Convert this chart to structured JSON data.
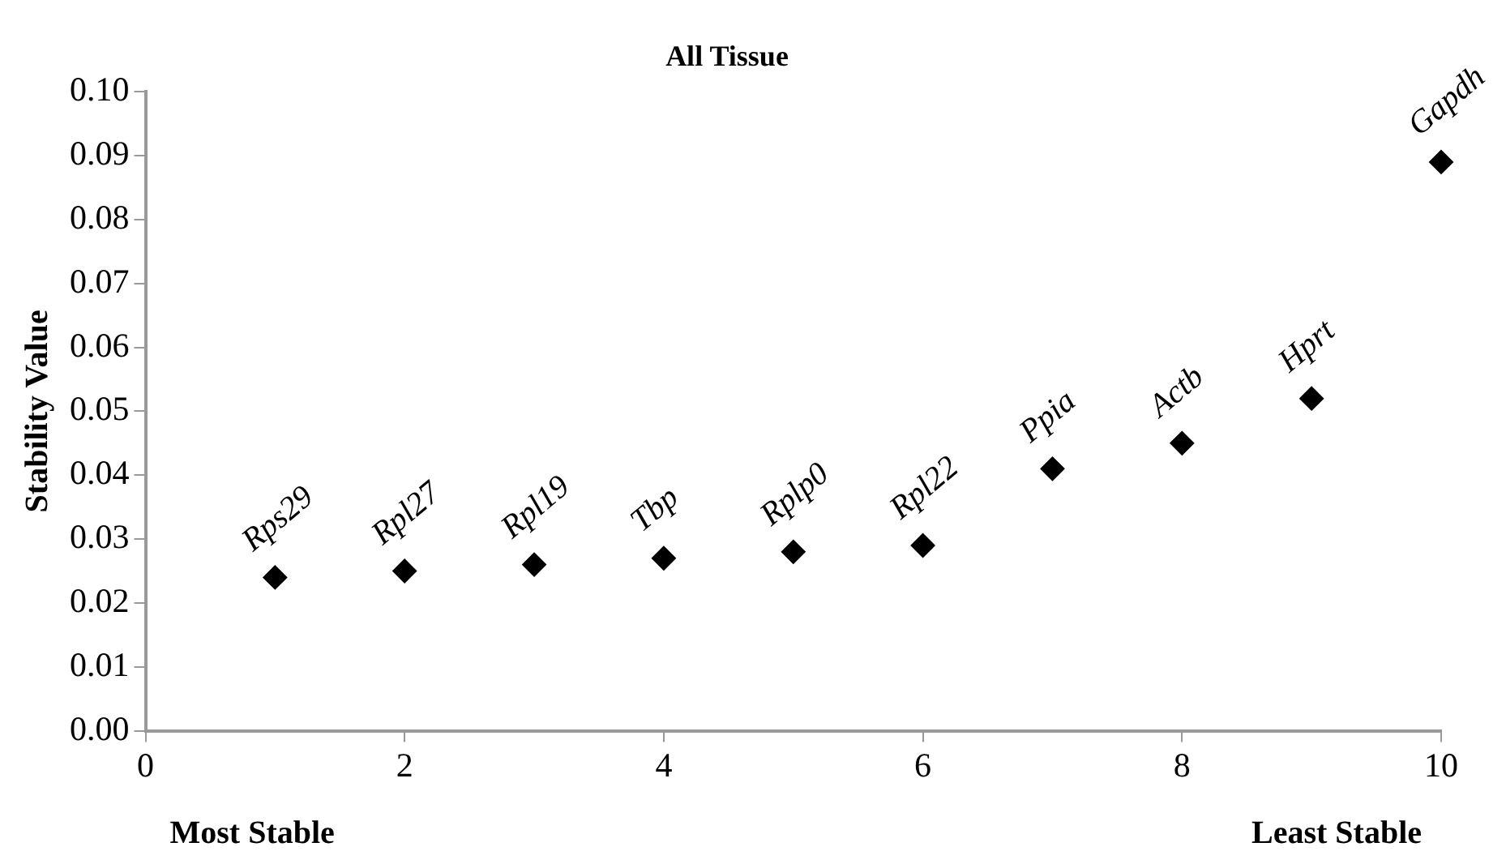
{
  "chart_data": {
    "type": "scatter",
    "title": "All Tissue",
    "ylabel": "Stability Value",
    "x": [
      1,
      2,
      3,
      4,
      5,
      6,
      7,
      8,
      9,
      10
    ],
    "values": [
      0.024,
      0.025,
      0.026,
      0.027,
      0.028,
      0.029,
      0.041,
      0.045,
      0.052,
      0.089
    ],
    "color": "#000000",
    "marker": "diamond",
    "grid": false,
    "legend": false,
    "xlim": [
      0,
      10
    ],
    "xticks": [
      0,
      2,
      4,
      6,
      8,
      10
    ],
    "ylim": [
      0,
      0.1
    ],
    "yticks": [
      {
        "value": 0,
        "label": "0.00"
      },
      {
        "value": 0.01,
        "label": "0.01"
      },
      {
        "value": 0.02,
        "label": "0.02"
      },
      {
        "value": 0.03,
        "label": "0.03"
      },
      {
        "value": 0.04,
        "label": "0.04"
      },
      {
        "value": 0.05,
        "label": "0.05"
      },
      {
        "value": 0.06,
        "label": "0.06"
      },
      {
        "value": 0.07,
        "label": "0.07"
      },
      {
        "value": 0.08,
        "label": "0.08"
      },
      {
        "value": 0.09,
        "label": "0.09"
      },
      {
        "value": 0.1,
        "label": "0.10"
      }
    ],
    "annotations": [
      {
        "text": "Rps29",
        "x": 1,
        "y": 0.024
      },
      {
        "text": "Rpl27",
        "x": 2,
        "y": 0.025
      },
      {
        "text": "Rpl19",
        "x": 3,
        "y": 0.026
      },
      {
        "text": "Tbp",
        "x": 4,
        "y": 0.027
      },
      {
        "text": "Rplp0",
        "x": 5,
        "y": 0.028
      },
      {
        "text": "Rpl22",
        "x": 6,
        "y": 0.029
      },
      {
        "text": "Ppia",
        "x": 7,
        "y": 0.041
      },
      {
        "text": "Actb",
        "x": 8,
        "y": 0.045
      },
      {
        "text": "Hprt",
        "x": 9,
        "y": 0.052
      },
      {
        "text": "Gapdh",
        "x": 10,
        "y": 0.089
      },
      "Most Stable",
      "Least Stable"
    ]
  }
}
